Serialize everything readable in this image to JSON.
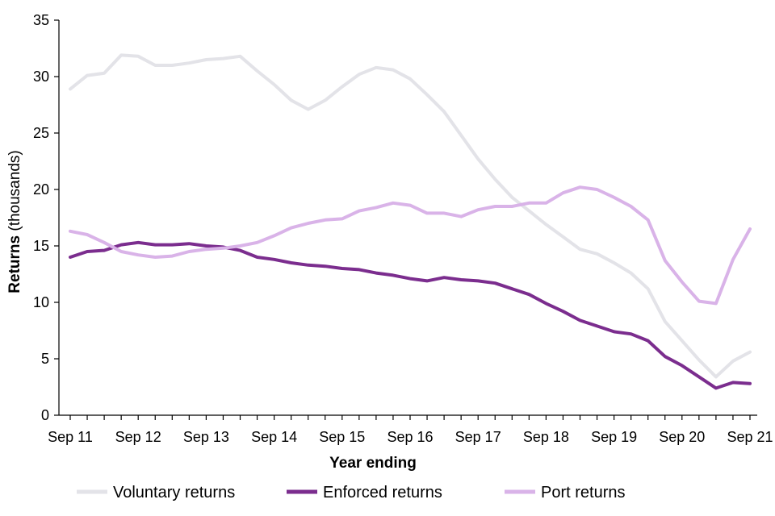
{
  "chart_data": {
    "type": "line",
    "title": "",
    "xlabel": "Year ending",
    "ylabel_bold": "Returns",
    "ylabel_rest": " (thousands)",
    "ylim": [
      0,
      35
    ],
    "yticks": [
      0,
      5,
      10,
      15,
      20,
      25,
      30,
      35
    ],
    "x_tick_labels": [
      "Sep 11",
      "Sep 12",
      "Sep 13",
      "Sep 14",
      "Sep 15",
      "Sep 16",
      "Sep 17",
      "Sep 18",
      "Sep 19",
      "Sep 20",
      "Sep 21"
    ],
    "x_points_per_year": 4,
    "grid": false,
    "legend_position": "bottom",
    "series": [
      {
        "name": "Voluntary returns",
        "color": "#e3e3e8",
        "values": [
          28.9,
          30.1,
          30.3,
          31.9,
          31.8,
          31.0,
          31.0,
          31.2,
          31.5,
          31.6,
          31.8,
          30.5,
          29.3,
          27.9,
          27.1,
          27.9,
          29.1,
          30.2,
          30.8,
          30.6,
          29.8,
          28.4,
          26.9,
          24.8,
          22.7,
          20.9,
          19.3,
          18.1,
          16.9,
          15.8,
          14.7,
          14.3,
          13.5,
          12.6,
          11.2,
          8.3,
          6.6,
          4.9,
          3.4,
          4.8,
          5.6
        ]
      },
      {
        "name": "Enforced returns",
        "color": "#7b2d8e",
        "values": [
          14.0,
          14.5,
          14.6,
          15.1,
          15.3,
          15.1,
          15.1,
          15.2,
          15.0,
          14.9,
          14.6,
          14.0,
          13.8,
          13.5,
          13.3,
          13.2,
          13.0,
          12.9,
          12.6,
          12.4,
          12.1,
          11.9,
          12.2,
          12.0,
          11.9,
          11.7,
          11.2,
          10.7,
          9.9,
          9.2,
          8.4,
          7.9,
          7.4,
          7.2,
          6.6,
          5.2,
          4.4,
          3.4,
          2.4,
          2.9,
          2.8
        ]
      },
      {
        "name": "Port returns",
        "color": "#d9b3e8",
        "values": [
          16.3,
          16.0,
          15.3,
          14.5,
          14.2,
          14.0,
          14.1,
          14.5,
          14.7,
          14.8,
          15.0,
          15.3,
          15.9,
          16.6,
          17.0,
          17.3,
          17.4,
          18.1,
          18.4,
          18.8,
          18.6,
          17.9,
          17.9,
          17.6,
          18.2,
          18.5,
          18.5,
          18.8,
          18.8,
          19.7,
          20.2,
          20.0,
          19.3,
          18.5,
          17.3,
          13.7,
          11.8,
          10.1,
          9.9,
          13.8,
          16.5
        ]
      }
    ]
  }
}
